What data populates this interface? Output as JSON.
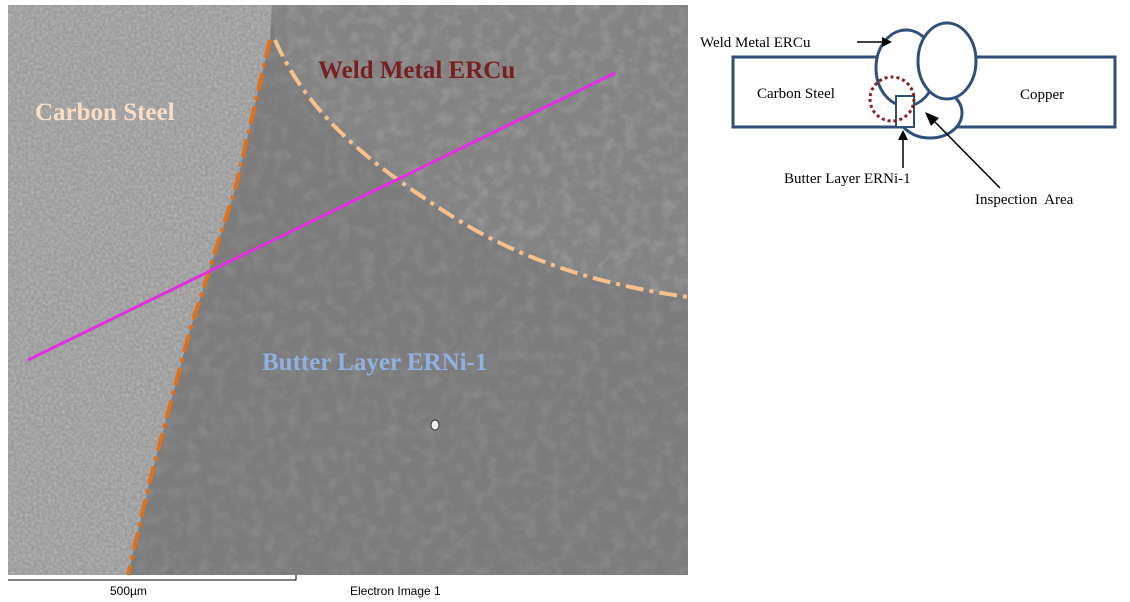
{
  "sem": {
    "labels": {
      "carbon_steel": "Carbon Steel",
      "weld_metal": "Weld Metal ERCu",
      "butter_layer": "Butter Layer ERNi-1"
    },
    "scale_bar": "500µm",
    "caption": "Electron Image 1"
  },
  "schematic": {
    "weld_metal": "Weld Metal ERCu",
    "carbon_steel": "Carbon Steel",
    "copper": "Copper",
    "butter_layer": "Butter Layer ERNi-1",
    "inspection_area": "Inspection  Area"
  }
}
